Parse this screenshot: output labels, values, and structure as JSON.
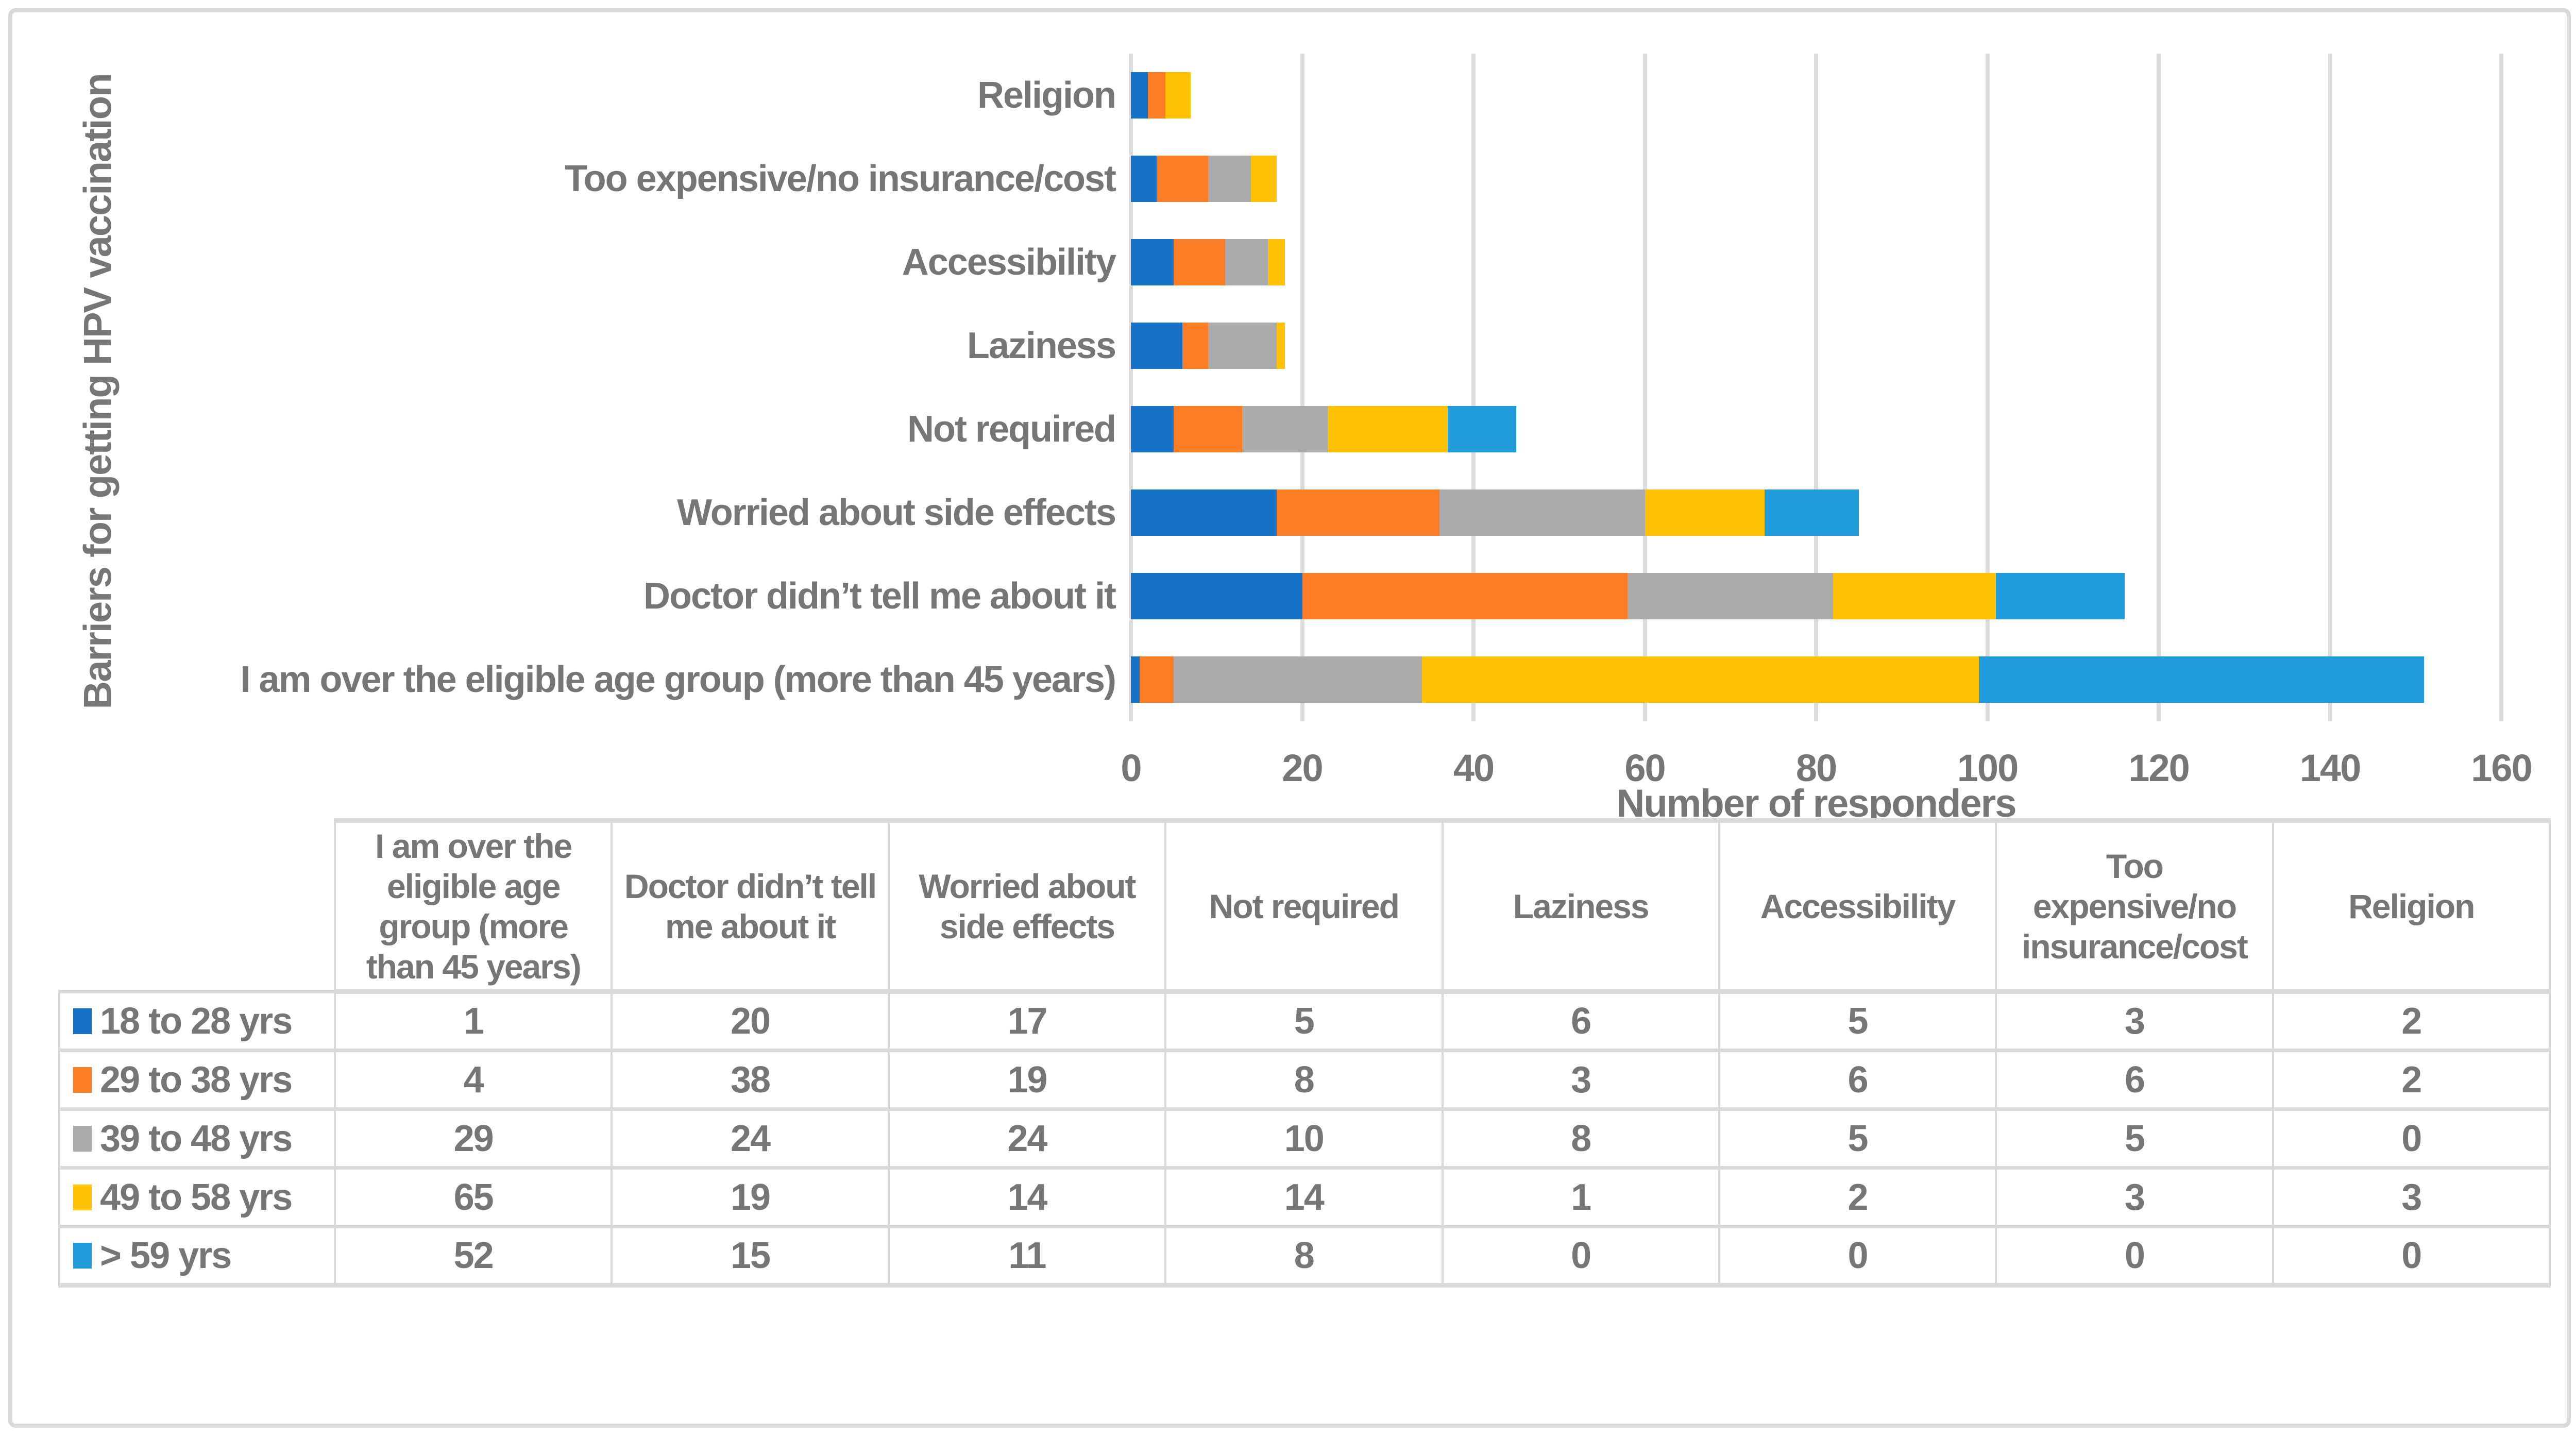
{
  "chart": {
    "y_axis_title": "Barriers for getting HPV vaccination",
    "x_axis_title": "Number of responders"
  },
  "chart_data": {
    "type": "bar",
    "orientation": "horizontal",
    "stacked": true,
    "title": "",
    "xlabel": "Number of responders",
    "ylabel": "Barriers for getting HPV vaccination",
    "xlim": [
      0,
      160
    ],
    "x_ticks": [
      0,
      20,
      40,
      60,
      80,
      100,
      120,
      140,
      160
    ],
    "grid": "vertical-gridlines",
    "legend_position": "table-below-chart",
    "categories": [
      "Religion",
      "Too expensive/no insurance/cost",
      "Accessibility",
      "Laziness",
      "Not required",
      "Worried about side effects",
      "Doctor didn’t tell me about it",
      "I am over the eligible age group (more than 45 years)"
    ],
    "series": [
      {
        "name": "18 to 28 yrs",
        "color": "#1572C6",
        "values": [
          2,
          3,
          5,
          6,
          5,
          17,
          20,
          1
        ]
      },
      {
        "name": "29 to 38 yrs",
        "color": "#FB7D26",
        "values": [
          2,
          6,
          6,
          3,
          8,
          19,
          38,
          4
        ]
      },
      {
        "name": "39 to 48 yrs",
        "color": "#ABABAB",
        "values": [
          0,
          5,
          5,
          8,
          10,
          24,
          24,
          29
        ]
      },
      {
        "name": "49 to 58 yrs",
        "color": "#FFC103",
        "values": [
          3,
          3,
          2,
          1,
          14,
          14,
          19,
          65
        ]
      },
      {
        "name": "> 59 yrs",
        "color": "#1F9CD9",
        "values": [
          0,
          0,
          0,
          0,
          8,
          11,
          15,
          52
        ]
      }
    ]
  },
  "table": {
    "columns": [
      "I am over the eligible age group (more than 45 years)",
      "Doctor didn’t tell me about it",
      "Worried about side effects",
      "Not required",
      "Laziness",
      "Accessibility",
      "Too expensive/no insurance/cost",
      "Religion"
    ],
    "rows": [
      {
        "label": "18 to 28 yrs",
        "values": [
          1,
          20,
          17,
          5,
          6,
          5,
          3,
          2
        ]
      },
      {
        "label": "29 to 38 yrs",
        "values": [
          4,
          38,
          19,
          8,
          3,
          6,
          6,
          2
        ]
      },
      {
        "label": "39 to 48 yrs",
        "values": [
          29,
          24,
          24,
          10,
          8,
          5,
          5,
          0
        ]
      },
      {
        "label": "49 to 58 yrs",
        "values": [
          65,
          19,
          14,
          14,
          1,
          2,
          3,
          3
        ]
      },
      {
        "label": "> 59 yrs",
        "values": [
          52,
          15,
          11,
          8,
          0,
          0,
          0,
          0
        ]
      }
    ]
  },
  "colors": {
    "text": "#767676",
    "gridline": "#DCDCDC",
    "table_border": "#D9D9D9",
    "figure_border": "#D9D9D9",
    "background": "#FFFFFF"
  }
}
